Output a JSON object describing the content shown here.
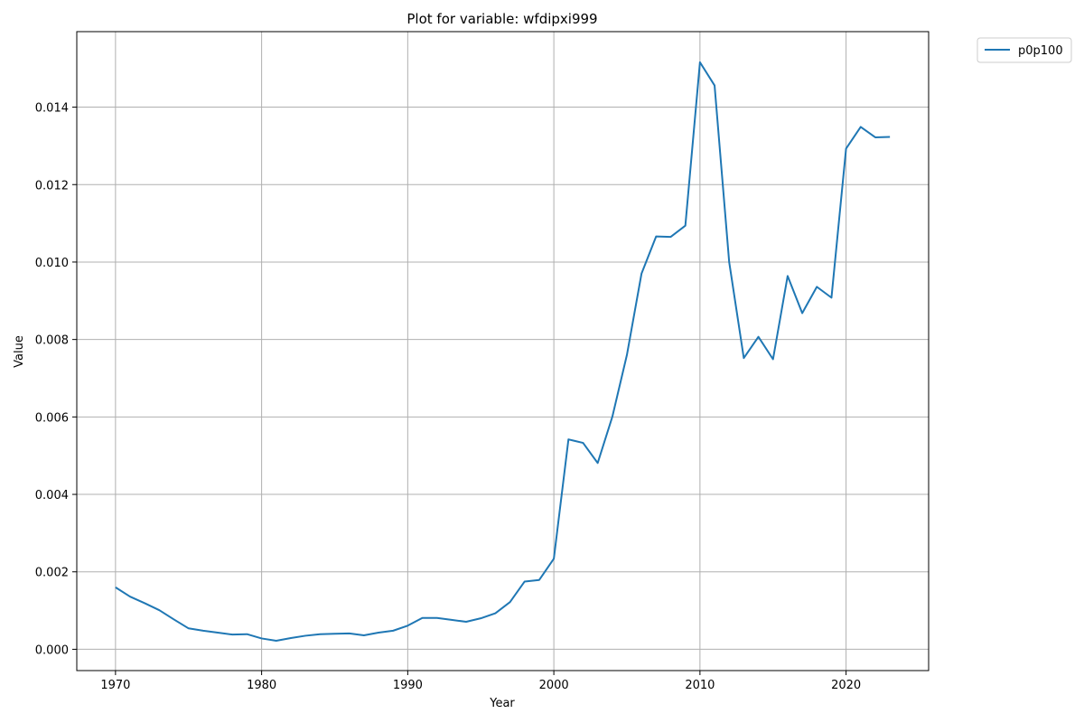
{
  "chart_data": {
    "type": "line",
    "title": "Plot for variable: wfdipxi999",
    "xlabel": "Year",
    "ylabel": "Value",
    "xlim": [
      1967.35,
      2025.65
    ],
    "ylim": [
      -0.00055,
      0.01595
    ],
    "x_ticks": [
      "1970",
      "1980",
      "1990",
      "2000",
      "2010",
      "2020"
    ],
    "y_ticks": [
      "0.000",
      "0.002",
      "0.004",
      "0.006",
      "0.008",
      "0.010",
      "0.012",
      "0.014"
    ],
    "grid": true,
    "legend_position": "outside-top-right",
    "series": [
      {
        "name": "p0p100",
        "color": "#1f77b4",
        "x": [
          1970,
          1971,
          1972,
          1973,
          1974,
          1975,
          1976,
          1977,
          1978,
          1979,
          1980,
          1981,
          1982,
          1983,
          1984,
          1985,
          1986,
          1987,
          1988,
          1989,
          1990,
          1991,
          1992,
          1993,
          1994,
          1995,
          1996,
          1997,
          1998,
          1999,
          2000,
          2001,
          2002,
          2003,
          2004,
          2005,
          2006,
          2007,
          2008,
          2009,
          2010,
          2011,
          2012,
          2013,
          2014,
          2015,
          2016,
          2017,
          2018,
          2019,
          2020,
          2021,
          2022,
          2023
        ],
        "y": [
          0.0016,
          0.00136,
          0.00119,
          0.00101,
          0.00077,
          0.00054,
          0.00048,
          0.00043,
          0.00038,
          0.00039,
          0.00028,
          0.00022,
          0.00029,
          0.00035,
          0.00039,
          0.0004,
          0.00041,
          0.00036,
          0.00043,
          0.00048,
          0.00061,
          0.00081,
          0.00081,
          0.00076,
          0.00071,
          0.0008,
          0.00093,
          0.00122,
          0.00175,
          0.00179,
          0.00234,
          0.00542,
          0.00533,
          0.00481,
          0.006,
          0.0076,
          0.0097,
          0.01066,
          0.01065,
          0.01094,
          0.01516,
          0.01456,
          0.01,
          0.00752,
          0.00807,
          0.00749,
          0.00964,
          0.00868,
          0.00936,
          0.00908,
          0.01293,
          0.01349,
          0.01322,
          0.01323
        ]
      }
    ]
  }
}
